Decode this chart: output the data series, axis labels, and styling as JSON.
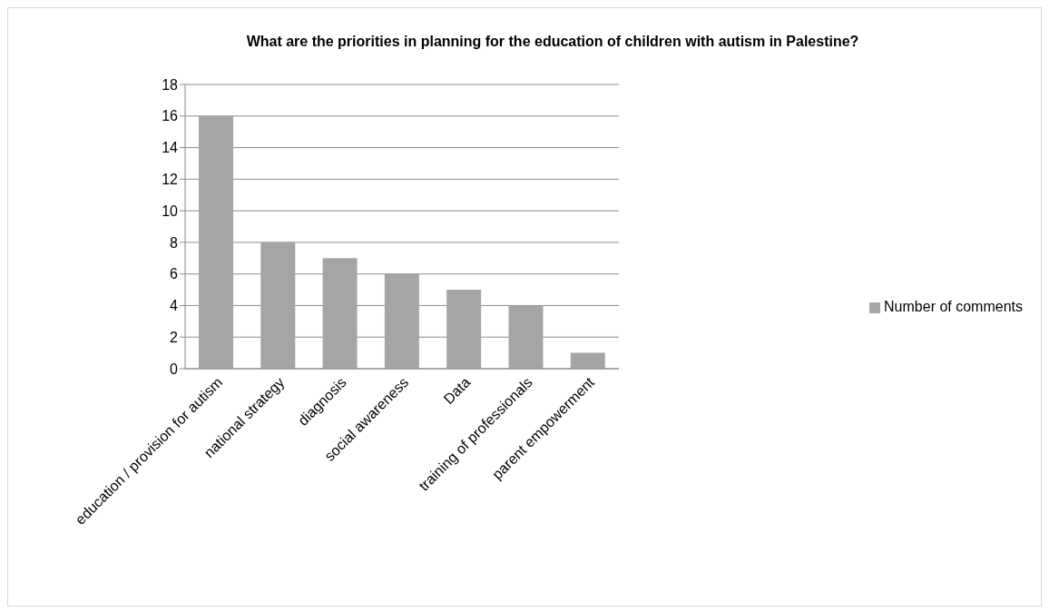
{
  "chart_data": {
    "type": "bar",
    "title": "What are the priorities in planning for the education of children with autism in Palestine?",
    "categories": [
      "education / provision for autism",
      "national strategy",
      "diagnosis",
      "social awareness",
      "Data",
      "training of professionals",
      "parent empowerment"
    ],
    "series": [
      {
        "name": "Number of comments",
        "color": "#a5a5a5",
        "values": [
          16,
          8,
          7,
          6,
          5,
          4,
          1
        ]
      }
    ],
    "ylim": [
      0,
      18
    ],
    "yticks": [
      0,
      2,
      4,
      6,
      8,
      10,
      12,
      14,
      16,
      18
    ],
    "grid": "y",
    "legend": "right"
  }
}
